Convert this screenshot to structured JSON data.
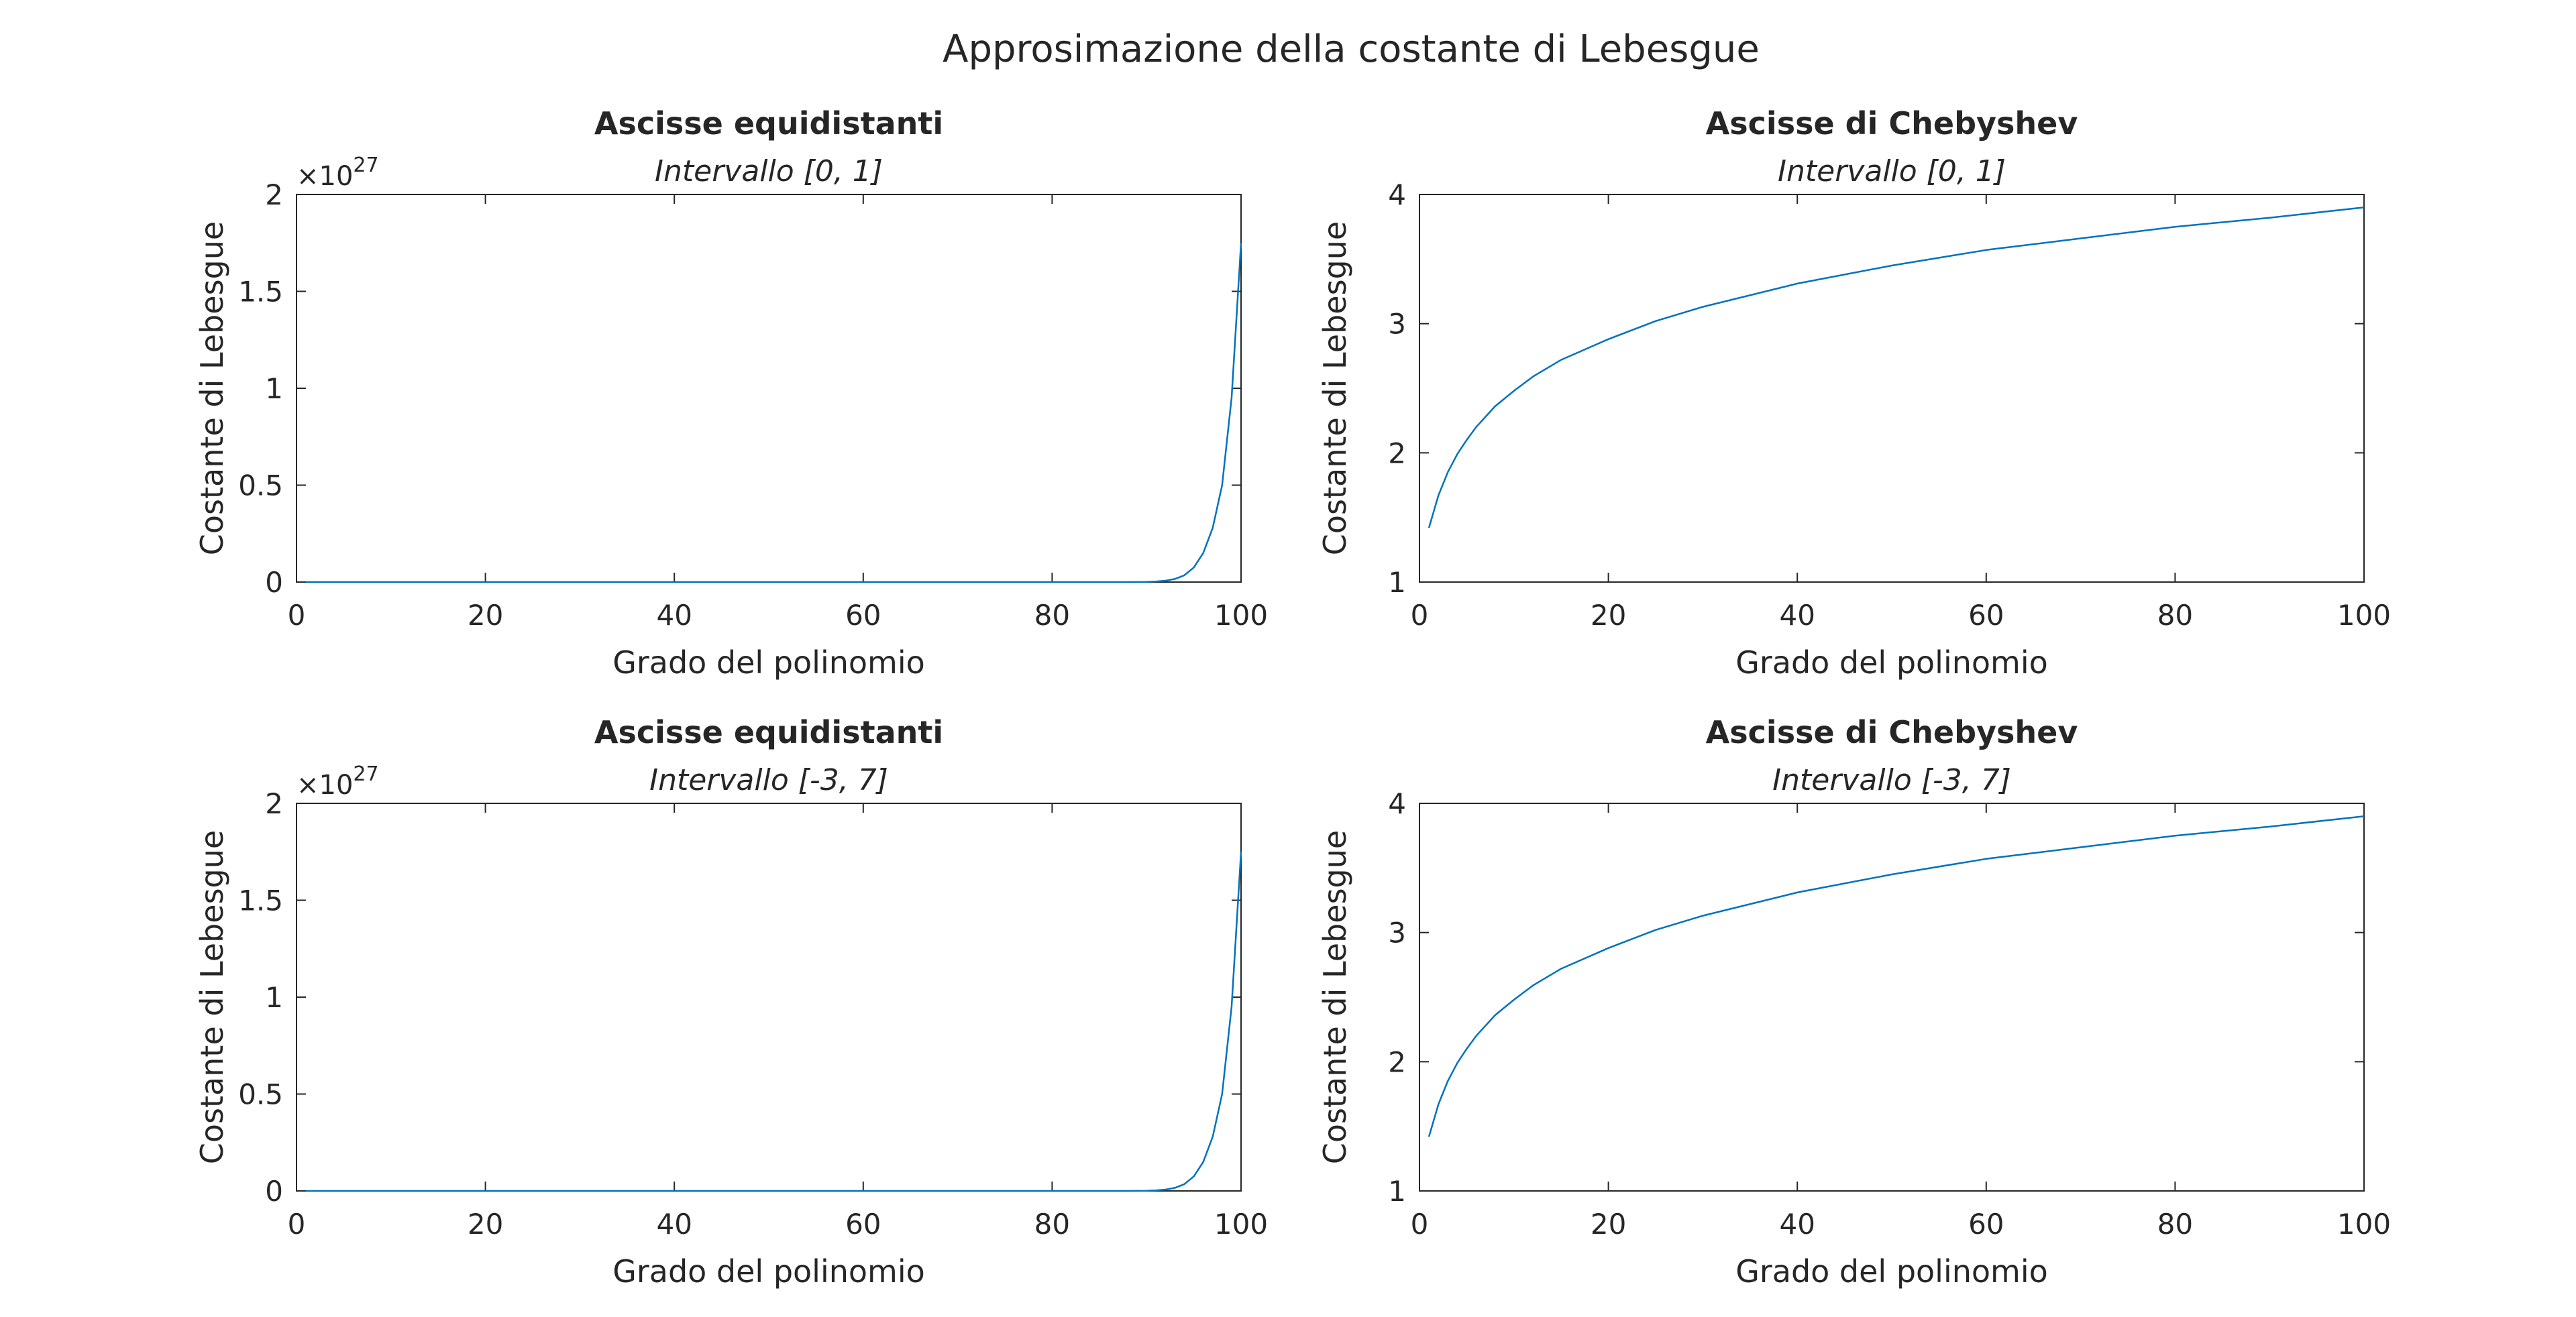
{
  "figure": {
    "title": "Approsimazione della costante di Lebesgue"
  },
  "colors": {
    "line": "#0072BD",
    "axes": "#262626",
    "background": "#ffffff"
  },
  "chart_data": [
    {
      "type": "line",
      "title": "Ascisse equidistanti",
      "subtitle": "Intervallo [0, 1]",
      "xlabel": "Grado del polinomio",
      "ylabel": "Costante di Lebesgue",
      "xlim": [
        0,
        100
      ],
      "ylim": [
        0,
        2
      ],
      "xticks": [
        "0",
        "20",
        "40",
        "60",
        "80",
        "100"
      ],
      "xtick_values": [
        0,
        20,
        40,
        60,
        80,
        100
      ],
      "yticks": [
        "0",
        "0.5",
        "1",
        "1.5",
        "2"
      ],
      "ytick_values": [
        0,
        0.5,
        1,
        1.5,
        2
      ],
      "y_multiplier_base": "×10",
      "y_multiplier_exp": "27",
      "grid": false,
      "x": [
        1,
        88,
        90,
        91,
        92,
        93,
        94,
        95,
        96,
        97,
        98,
        99,
        100
      ],
      "y": [
        0,
        0,
        0.001,
        0.003,
        0.007,
        0.016,
        0.035,
        0.075,
        0.15,
        0.28,
        0.5,
        0.95,
        1.75
      ]
    },
    {
      "type": "line",
      "title": "Ascisse di Chebyshev",
      "subtitle": "Intervallo [0, 1]",
      "xlabel": "Grado del polinomio",
      "ylabel": "Costante di Lebesgue",
      "xlim": [
        0,
        100
      ],
      "ylim": [
        1,
        4
      ],
      "xticks": [
        "0",
        "20",
        "40",
        "60",
        "80",
        "100"
      ],
      "xtick_values": [
        0,
        20,
        40,
        60,
        80,
        100
      ],
      "yticks": [
        "1",
        "2",
        "3",
        "4"
      ],
      "ytick_values": [
        1,
        2,
        3,
        4
      ],
      "grid": false,
      "x": [
        1,
        2,
        3,
        4,
        5,
        6,
        8,
        10,
        12,
        15,
        20,
        25,
        30,
        40,
        50,
        60,
        70,
        80,
        90,
        100
      ],
      "y": [
        1.42,
        1.67,
        1.85,
        1.99,
        2.1,
        2.2,
        2.36,
        2.48,
        2.59,
        2.72,
        2.88,
        3.02,
        3.13,
        3.31,
        3.45,
        3.57,
        3.66,
        3.75,
        3.82,
        3.9
      ]
    },
    {
      "type": "line",
      "title": "Ascisse equidistanti",
      "subtitle": "Intervallo [-3, 7]",
      "xlabel": "Grado del polinomio",
      "ylabel": "Costante di Lebesgue",
      "xlim": [
        0,
        100
      ],
      "ylim": [
        0,
        2
      ],
      "xticks": [
        "0",
        "20",
        "40",
        "60",
        "80",
        "100"
      ],
      "xtick_values": [
        0,
        20,
        40,
        60,
        80,
        100
      ],
      "yticks": [
        "0",
        "0.5",
        "1",
        "1.5",
        "2"
      ],
      "ytick_values": [
        0,
        0.5,
        1,
        1.5,
        2
      ],
      "y_multiplier_base": "×10",
      "y_multiplier_exp": "27",
      "grid": false,
      "x": [
        1,
        88,
        90,
        91,
        92,
        93,
        94,
        95,
        96,
        97,
        98,
        99,
        100
      ],
      "y": [
        0,
        0,
        0.001,
        0.003,
        0.007,
        0.016,
        0.035,
        0.075,
        0.15,
        0.28,
        0.5,
        0.95,
        1.75
      ]
    },
    {
      "type": "line",
      "title": "Ascisse di Chebyshev",
      "subtitle": "Intervallo [-3, 7]",
      "xlabel": "Grado del polinomio",
      "ylabel": "Costante di Lebesgue",
      "xlim": [
        0,
        100
      ],
      "ylim": [
        1,
        4
      ],
      "xticks": [
        "0",
        "20",
        "40",
        "60",
        "80",
        "100"
      ],
      "xtick_values": [
        0,
        20,
        40,
        60,
        80,
        100
      ],
      "yticks": [
        "1",
        "2",
        "3",
        "4"
      ],
      "ytick_values": [
        1,
        2,
        3,
        4
      ],
      "grid": false,
      "x": [
        1,
        2,
        3,
        4,
        5,
        6,
        8,
        10,
        12,
        15,
        20,
        25,
        30,
        40,
        50,
        60,
        70,
        80,
        90,
        100
      ],
      "y": [
        1.42,
        1.67,
        1.85,
        1.99,
        2.1,
        2.2,
        2.36,
        2.48,
        2.59,
        2.72,
        2.88,
        3.02,
        3.13,
        3.31,
        3.45,
        3.57,
        3.66,
        3.75,
        3.82,
        3.9
      ]
    }
  ]
}
